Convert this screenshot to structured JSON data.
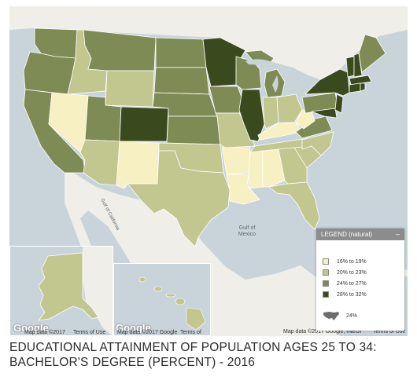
{
  "map": {
    "gulf_label_1": "Gulf of",
    "gulf_label_2": "Mexico",
    "gulf_of_california": "Gulf of California",
    "google": "Google",
    "attr_main": "Map data ©2017",
    "attr_alaska": "Map data ©2017",
    "terms_alaska": "Terms of Use",
    "attr_hawaii": "Map data ©2017 Google",
    "terms_hawaii": "Terms of Use",
    "attr_right": "Map data ©2017 Google, INEGI",
    "terms_right": "Terms of Use"
  },
  "colors": {
    "c1": "#f6f0c2",
    "c2": "#c2c68f",
    "c3": "#7f8b55",
    "c4": "#3b4a1e",
    "water": "#c9d4da",
    "land": "#f2f1ec",
    "legend_header": "#8c8c8c"
  },
  "legend": {
    "title": "LEGEND (natural)",
    "min_icon": "–",
    "bins": [
      {
        "label": "16% to 19%",
        "color": "#f6f0c2"
      },
      {
        "label": "20% to 23%",
        "color": "#c2c68f"
      },
      {
        "label": "24% to 27%",
        "color": "#7f8b55"
      },
      {
        "label": "28% to 32%",
        "color": "#3b4a1e"
      }
    ],
    "us_average_label": "24%",
    "us_average_icon": "us-outline-icon"
  },
  "caption": {
    "line1": "EDUCATIONAL ATTAINMENT OF POPULATION AGES 25 TO 34:",
    "line2": "BACHELOR'S DEGREE (PERCENT) - 2016"
  }
}
